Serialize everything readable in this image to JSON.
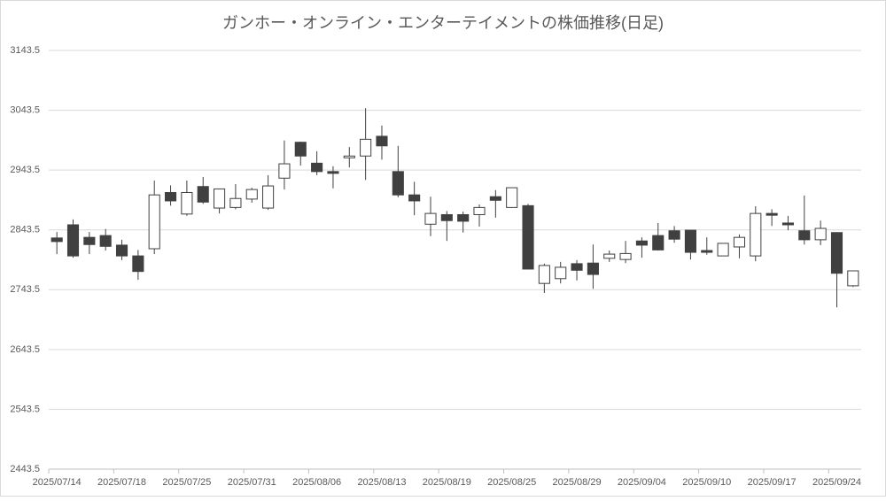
{
  "chart_data": {
    "type": "candlestick",
    "title": "ガンホー・オンライン・エンターテイメントの株価推移(日足)",
    "categories": [
      "2025/07/14",
      null,
      null,
      null,
      "2025/07/18",
      null,
      null,
      null,
      "2025/07/25",
      null,
      null,
      null,
      "2025/07/31",
      null,
      null,
      null,
      "2025/08/06",
      null,
      null,
      null,
      "2025/08/13",
      null,
      null,
      null,
      "2025/08/19",
      null,
      null,
      null,
      "2025/08/25",
      null,
      null,
      null,
      "2025/08/29",
      null,
      null,
      null,
      "2025/09/04",
      null,
      null,
      null,
      "2025/09/10",
      null,
      null,
      null,
      "2025/09/17",
      null,
      null,
      null,
      "2025/09/24",
      null
    ],
    "open": [
      2830,
      2852,
      2831,
      2834,
      2818,
      2800,
      2812,
      2906,
      2870,
      2916,
      2880,
      2881,
      2895,
      2880,
      2930,
      2990,
      2955,
      2941,
      2964,
      2967,
      3000,
      2941,
      2902,
      2853,
      2869,
      2869,
      2869,
      2899,
      2881,
      2884,
      2754,
      2762,
      2787,
      2788,
      2796,
      2794,
      2825,
      2834,
      2842,
      2843,
      2809,
      2800,
      2815,
      2800,
      2871,
      2855,
      2842,
      2827,
      2839,
      2750
    ],
    "high": [
      2840,
      2861,
      2840,
      2845,
      2827,
      2810,
      2926,
      2918,
      2926,
      2932,
      2912,
      2920,
      2914,
      2935,
      2993,
      2991,
      2975,
      2950,
      2982,
      3047,
      3018,
      2984,
      2924,
      2899,
      2875,
      2874,
      2886,
      2910,
      2914,
      2887,
      2787,
      2790,
      2793,
      2819,
      2809,
      2825,
      2831,
      2855,
      2850,
      2843,
      2831,
      2821,
      2836,
      2883,
      2878,
      2867,
      2901,
      2859,
      2839,
      2775
    ],
    "low": [
      2803,
      2797,
      2803,
      2809,
      2793,
      2760,
      2803,
      2884,
      2867,
      2887,
      2871,
      2878,
      2889,
      2877,
      2911,
      2951,
      2935,
      2913,
      2948,
      2927,
      2961,
      2898,
      2868,
      2833,
      2825,
      2839,
      2849,
      2864,
      2881,
      2778,
      2738,
      2754,
      2759,
      2745,
      2790,
      2788,
      2797,
      2809,
      2822,
      2794,
      2802,
      2800,
      2796,
      2791,
      2850,
      2843,
      2819,
      2818,
      2714,
      2748
    ],
    "close": [
      2824,
      2800,
      2819,
      2816,
      2800,
      2774,
      2902,
      2892,
      2906,
      2890,
      2912,
      2896,
      2911,
      2917,
      2954,
      2967,
      2941,
      2938,
      2967,
      2995,
      2984,
      2902,
      2892,
      2871,
      2859,
      2858,
      2881,
      2893,
      2914,
      2778,
      2784,
      2781,
      2776,
      2769,
      2803,
      2804,
      2818,
      2810,
      2828,
      2806,
      2806,
      2821,
      2831,
      2871,
      2868,
      2852,
      2827,
      2846,
      2771,
      2775
    ],
    "up_color": "#ffffff",
    "down_color": "#404040",
    "line_color": "#404040",
    "ylim": [
      2443.5,
      3143.5
    ],
    "yticks": [
      2443.5,
      2543.5,
      2643.5,
      2743.5,
      2843.5,
      2943.5,
      3043.5,
      3143.5
    ],
    "grid": true
  }
}
